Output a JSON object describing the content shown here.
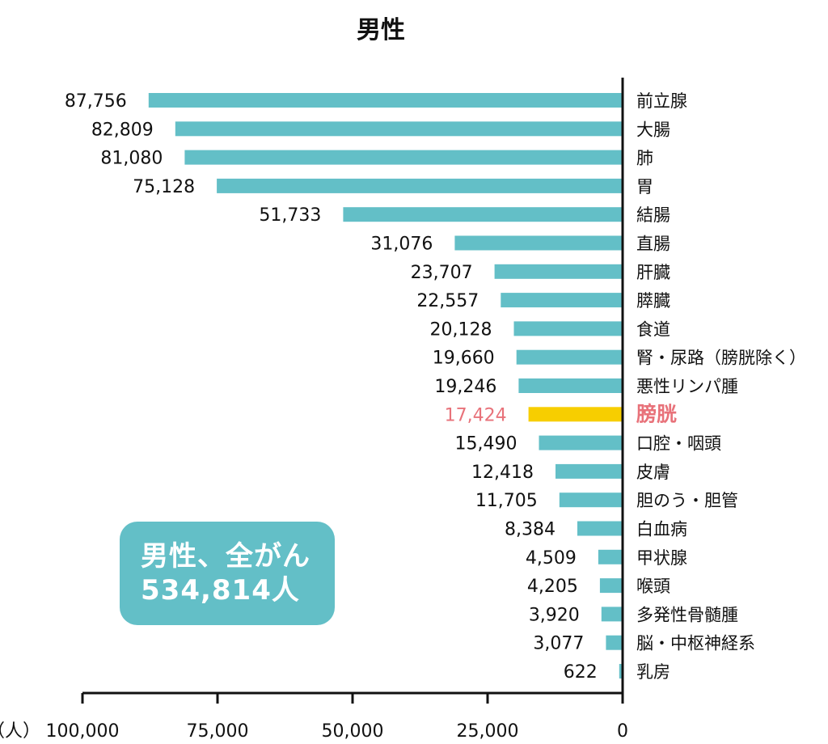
{
  "chart_data": {
    "type": "bar",
    "orientation": "horizontal-reversed",
    "title": "男性",
    "categories": [
      "前立腺",
      "大腸",
      "肺",
      "胃",
      "結腸",
      "直腸",
      "肝臓",
      "膵臓",
      "食道",
      "腎・尿路（膀胱除く）",
      "悪性リンパ腫",
      "膀胱",
      "口腔・咽頭",
      "皮膚",
      "胆のう・胆管",
      "白血病",
      "甲状腺",
      "喉頭",
      "多発性骨髄腫",
      "脳・中枢神経系",
      "乳房"
    ],
    "values": [
      87756,
      82809,
      81080,
      75128,
      51733,
      31076,
      23707,
      22557,
      20128,
      19660,
      19246,
      17424,
      15490,
      12418,
      11705,
      8384,
      4509,
      4205,
      3920,
      3077,
      622
    ],
    "value_labels": [
      "87,756",
      "82,809",
      "81,080",
      "75,128",
      "51,733",
      "31,076",
      "23,707",
      "22,557",
      "20,128",
      "19,660",
      "19,246",
      "17,424",
      "15,490",
      "12,418",
      "11,705",
      "8,384",
      "4,509",
      "4,205",
      "3,920",
      "3,077",
      "622"
    ],
    "highlight_index": 11,
    "xlim": [
      0,
      100000
    ],
    "x_ticks": [
      100000,
      75000,
      50000,
      25000,
      0
    ],
    "x_tick_labels": [
      "100,000",
      "75,000",
      "50,000",
      "25,000",
      "0"
    ],
    "x_unit": "（人）",
    "grid": false
  },
  "colors": {
    "bar": "#63bfc7",
    "highlight_bar": "#f7ce00",
    "highlight_text": "#e8727a",
    "axis": "#111111",
    "total_box": "#63bfc7"
  },
  "total_box": {
    "line1": "男性、全がん",
    "line2": "534,814人"
  }
}
